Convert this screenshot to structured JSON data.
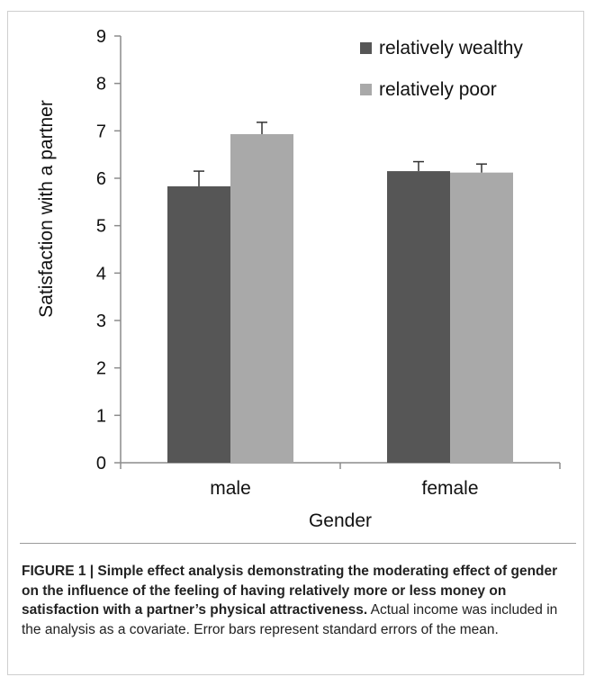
{
  "chart_data": {
    "type": "bar",
    "categories": [
      "male",
      "female"
    ],
    "series": [
      {
        "name": "relatively wealthy",
        "values": [
          5.83,
          6.15
        ],
        "errors": [
          0.32,
          0.2
        ],
        "color": "#565656"
      },
      {
        "name": "relatively poor",
        "values": [
          6.93,
          6.12
        ],
        "errors": [
          0.25,
          0.18
        ],
        "color": "#a9a9a9"
      }
    ],
    "xlabel": "Gender",
    "ylabel": "Satisfaction with a partner",
    "ylim": [
      0,
      9
    ],
    "yticks": [
      "0",
      "1",
      "2",
      "3",
      "4",
      "5",
      "6",
      "7",
      "8",
      "9"
    ],
    "grid": false,
    "legend_position": "top-right"
  },
  "caption": {
    "title": "FIGURE 1 | Simple effect analysis demonstrating the moderating effect of gender on the influence of the feeling of having relatively more or less money on satisfaction with a partner’s physical attractiveness.",
    "body": "Actual income was included in the analysis as a covariate. Error bars represent standard errors of the mean."
  }
}
